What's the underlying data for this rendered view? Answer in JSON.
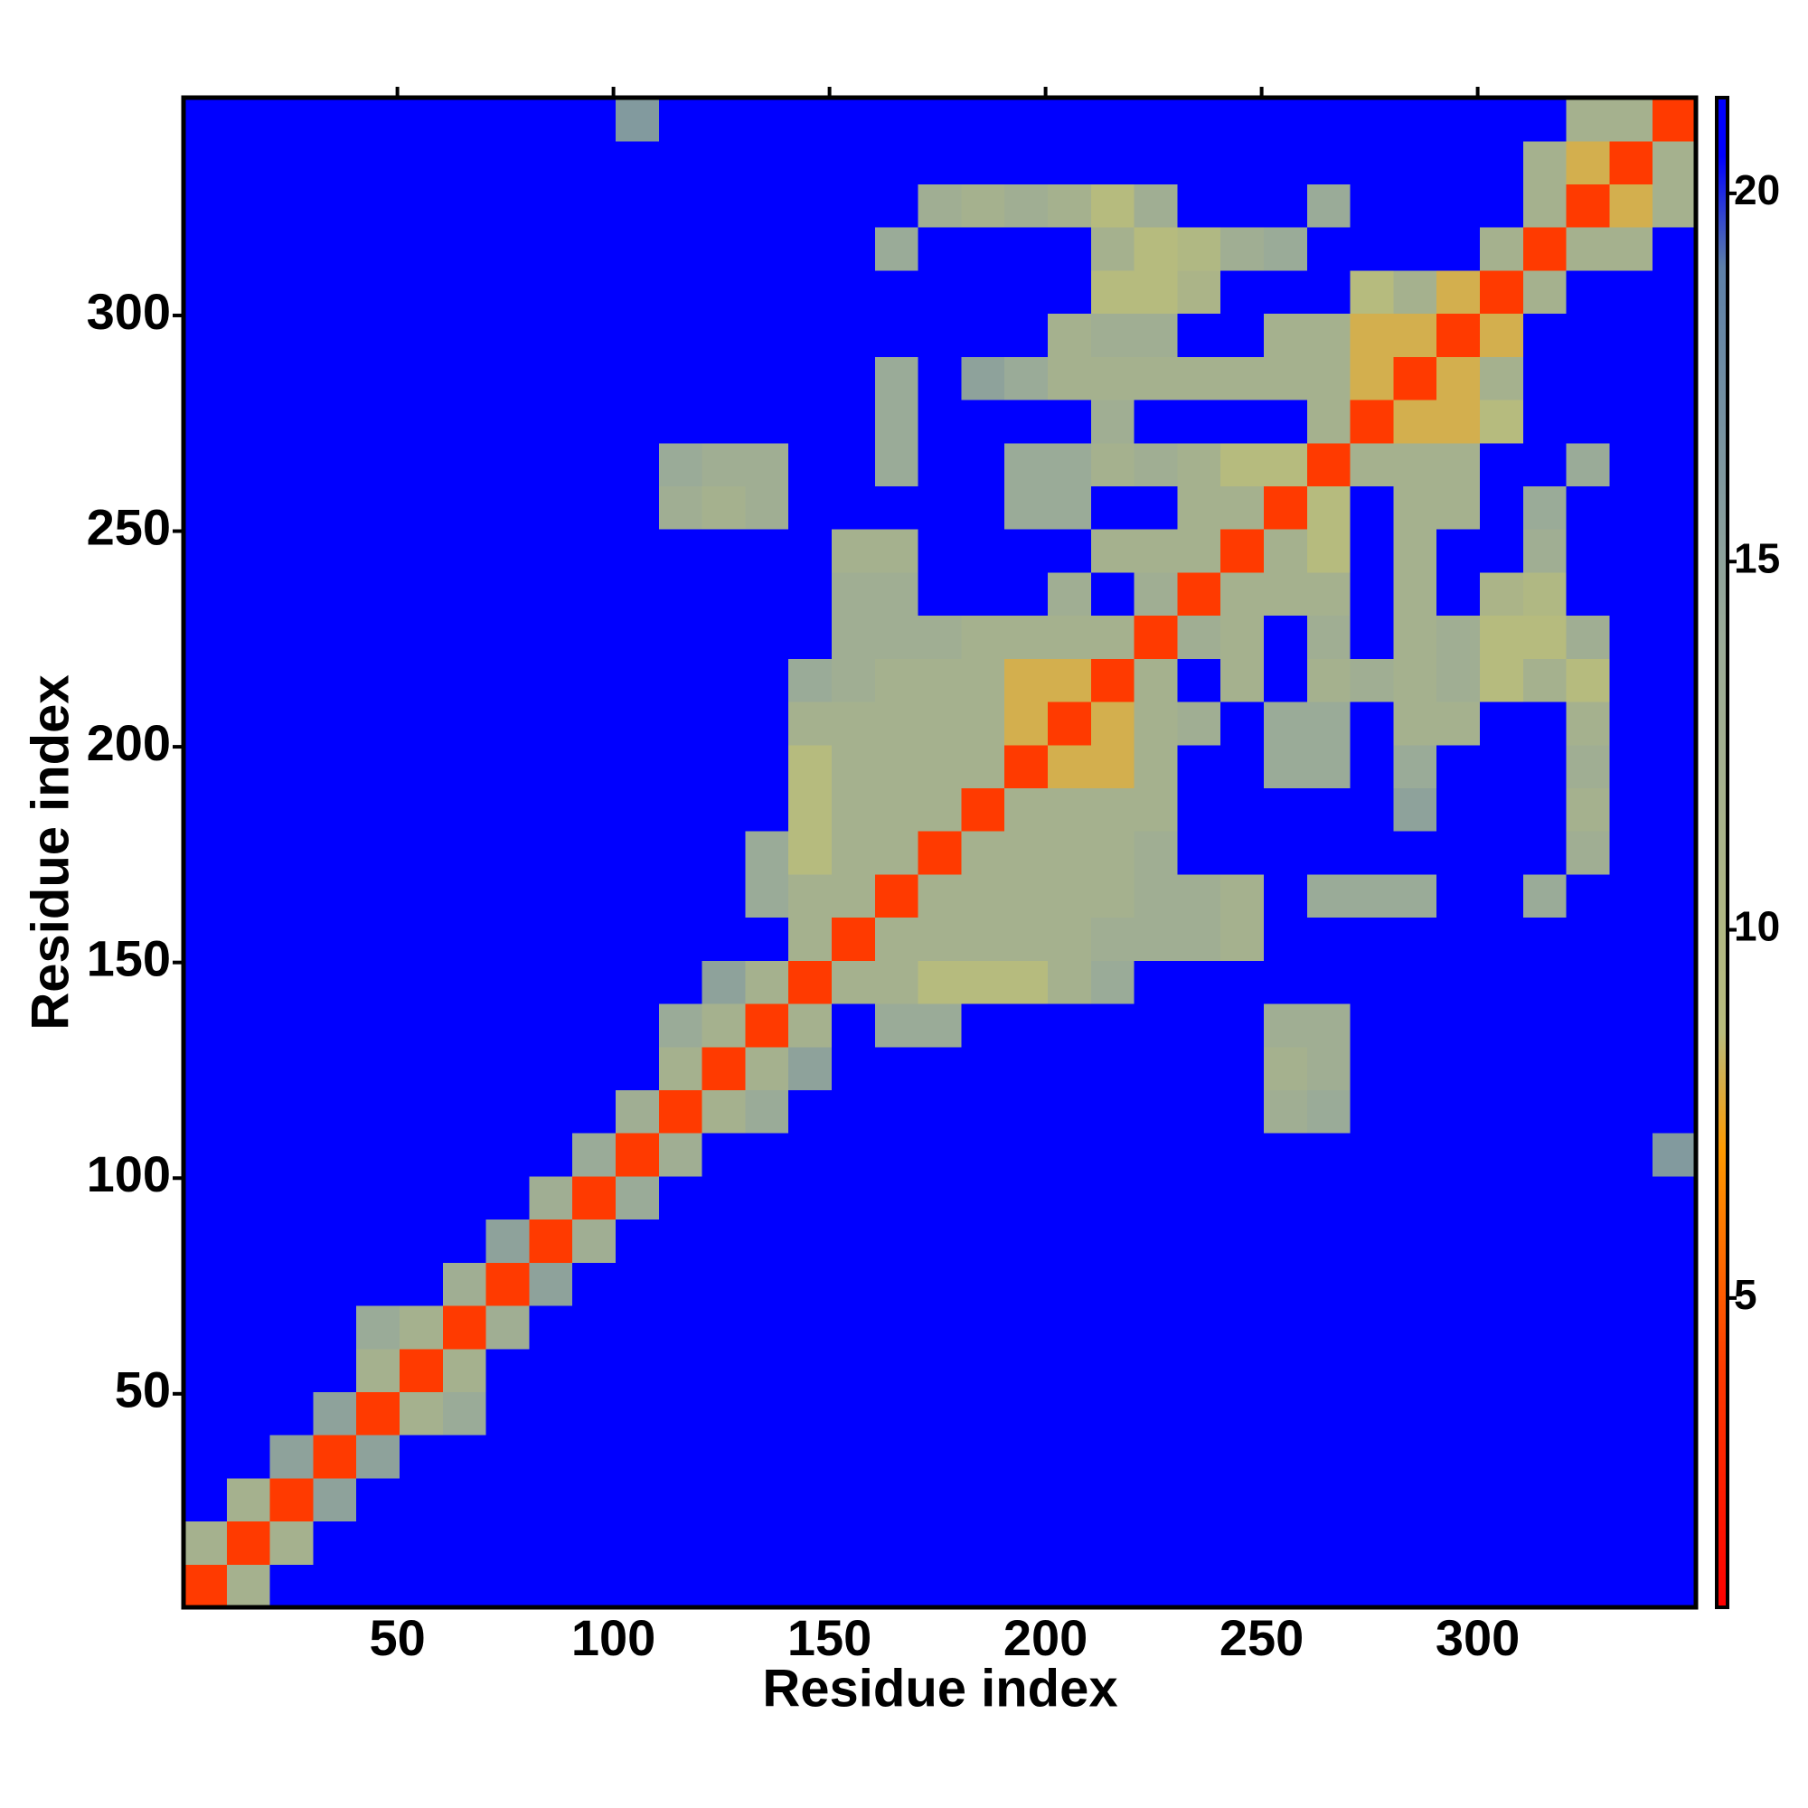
{
  "chart_data": {
    "type": "heatmap",
    "xlabel": "Residue index",
    "ylabel": "Residue index",
    "xlim": [
      0.5,
      350.5
    ],
    "ylim": [
      0.5,
      350.5
    ],
    "xticks": [
      50,
      100,
      150,
      200,
      250,
      300
    ],
    "yticks": [
      50,
      100,
      150,
      200,
      250,
      300
    ],
    "x": [
      5.5,
      15.5,
      25.5,
      35.5,
      45.5,
      55.5,
      65.5,
      75.5,
      85.5,
      95.5,
      105.5,
      115.5,
      125.5,
      135.5,
      145.5,
      155.5,
      165.5,
      175.5,
      185.5,
      195.5,
      205.5,
      215.5,
      225.5,
      235.5,
      245.5,
      255.5,
      265.5,
      275.5,
      285.5,
      295.5,
      305.5,
      315.5,
      325.5,
      335.5,
      345.5
    ],
    "y": [
      5.5,
      15.5,
      25.5,
      35.5,
      45.5,
      55.5,
      65.5,
      75.5,
      85.5,
      95.5,
      105.5,
      115.5,
      125.5,
      135.5,
      145.5,
      155.5,
      165.5,
      175.5,
      185.5,
      195.5,
      205.5,
      215.5,
      225.5,
      235.5,
      245.5,
      255.5,
      265.5,
      275.5,
      285.5,
      295.5,
      305.5,
      315.5,
      325.5,
      335.5,
      345.5
    ],
    "z": [
      [
        4,
        12,
        21,
        21,
        21,
        21,
        21,
        21,
        21,
        21,
        21,
        21,
        21,
        21,
        21,
        21,
        21,
        21,
        21,
        21,
        21,
        21,
        21,
        21,
        21,
        21,
        21,
        21,
        21,
        21,
        21,
        21,
        21,
        21,
        21
      ],
      [
        12,
        4,
        12,
        21,
        21,
        21,
        21,
        21,
        21,
        21,
        21,
        21,
        21,
        21,
        21,
        21,
        21,
        21,
        21,
        21,
        21,
        21,
        21,
        21,
        21,
        21,
        21,
        21,
        21,
        21,
        21,
        21,
        21,
        21,
        21
      ],
      [
        21,
        12,
        4,
        15,
        21,
        21,
        21,
        21,
        21,
        21,
        21,
        21,
        21,
        21,
        21,
        21,
        21,
        21,
        21,
        21,
        21,
        21,
        21,
        21,
        21,
        21,
        21,
        21,
        21,
        21,
        21,
        21,
        21,
        21,
        21
      ],
      [
        21,
        21,
        15,
        4,
        15,
        21,
        21,
        21,
        21,
        21,
        21,
        21,
        21,
        21,
        21,
        21,
        21,
        21,
        21,
        21,
        21,
        21,
        21,
        21,
        21,
        21,
        21,
        21,
        21,
        21,
        21,
        21,
        21,
        21,
        21
      ],
      [
        21,
        21,
        21,
        15,
        4,
        12,
        14,
        21,
        21,
        21,
        21,
        21,
        21,
        21,
        21,
        21,
        21,
        21,
        21,
        21,
        21,
        21,
        21,
        21,
        21,
        21,
        21,
        21,
        21,
        21,
        21,
        21,
        21,
        21,
        21
      ],
      [
        21,
        21,
        21,
        21,
        12,
        4,
        12,
        21,
        21,
        21,
        21,
        21,
        21,
        21,
        21,
        21,
        21,
        21,
        21,
        21,
        21,
        21,
        21,
        21,
        21,
        21,
        21,
        21,
        21,
        21,
        21,
        21,
        21,
        21,
        21
      ],
      [
        21,
        21,
        21,
        21,
        14,
        12,
        4,
        13,
        21,
        21,
        21,
        21,
        21,
        21,
        21,
        21,
        21,
        21,
        21,
        21,
        21,
        21,
        21,
        21,
        21,
        21,
        21,
        21,
        21,
        21,
        21,
        21,
        21,
        21,
        21
      ],
      [
        21,
        21,
        21,
        21,
        21,
        21,
        13,
        4,
        15,
        21,
        21,
        21,
        21,
        21,
        21,
        21,
        21,
        21,
        21,
        21,
        21,
        21,
        21,
        21,
        21,
        21,
        21,
        21,
        21,
        21,
        21,
        21,
        21,
        21,
        21
      ],
      [
        21,
        21,
        21,
        21,
        21,
        21,
        21,
        15,
        4,
        13,
        21,
        21,
        21,
        21,
        21,
        21,
        21,
        21,
        21,
        21,
        21,
        21,
        21,
        21,
        21,
        21,
        21,
        21,
        21,
        21,
        21,
        21,
        21,
        21,
        21
      ],
      [
        21,
        21,
        21,
        21,
        21,
        21,
        21,
        21,
        13,
        4,
        14,
        21,
        21,
        21,
        21,
        21,
        21,
        21,
        21,
        21,
        21,
        21,
        21,
        21,
        21,
        21,
        21,
        21,
        21,
        21,
        21,
        21,
        21,
        21,
        21
      ],
      [
        21,
        21,
        21,
        21,
        21,
        21,
        21,
        21,
        21,
        14,
        4,
        13,
        21,
        21,
        21,
        21,
        21,
        21,
        21,
        21,
        21,
        21,
        21,
        21,
        21,
        21,
        21,
        21,
        21,
        21,
        21,
        21,
        21,
        21,
        16
      ],
      [
        21,
        21,
        21,
        21,
        21,
        21,
        21,
        21,
        21,
        21,
        13,
        4,
        12,
        14,
        21,
        21,
        21,
        21,
        21,
        21,
        21,
        21,
        21,
        21,
        21,
        13,
        14,
        21,
        21,
        21,
        21,
        21,
        21,
        21,
        21
      ],
      [
        21,
        21,
        21,
        21,
        21,
        21,
        21,
        21,
        21,
        21,
        21,
        12,
        4,
        12,
        15,
        21,
        21,
        21,
        21,
        21,
        21,
        21,
        21,
        21,
        21,
        12,
        13,
        21,
        21,
        21,
        21,
        21,
        21,
        21,
        21
      ],
      [
        21,
        21,
        21,
        21,
        21,
        21,
        21,
        21,
        21,
        21,
        21,
        14,
        12,
        4,
        12,
        21,
        14,
        14,
        21,
        21,
        21,
        21,
        21,
        21,
        21,
        13,
        13,
        21,
        21,
        21,
        21,
        21,
        21,
        21,
        21
      ],
      [
        21,
        21,
        21,
        21,
        21,
        21,
        21,
        21,
        21,
        21,
        21,
        21,
        15,
        12,
        4,
        12,
        12,
        9,
        9,
        9,
        12,
        14,
        21,
        21,
        21,
        21,
        21,
        21,
        21,
        21,
        21,
        21,
        21,
        21,
        21
      ],
      [
        21,
        21,
        21,
        21,
        21,
        21,
        21,
        21,
        21,
        21,
        21,
        21,
        21,
        21,
        12,
        4,
        12,
        12,
        12,
        12,
        12,
        13,
        13,
        13,
        12,
        21,
        21,
        21,
        21,
        21,
        21,
        21,
        21,
        21,
        21
      ],
      [
        21,
        21,
        21,
        21,
        21,
        21,
        21,
        21,
        21,
        21,
        21,
        21,
        21,
        14,
        12,
        12,
        4,
        12,
        12,
        12,
        12,
        12,
        13,
        13,
        12,
        21,
        14,
        14,
        14,
        21,
        21,
        14,
        21,
        21,
        21
      ],
      [
        21,
        21,
        21,
        21,
        21,
        21,
        21,
        21,
        21,
        21,
        21,
        21,
        21,
        14,
        9,
        12,
        12,
        4,
        12,
        12,
        12,
        12,
        13,
        21,
        21,
        21,
        21,
        21,
        21,
        21,
        21,
        21,
        13,
        21,
        21
      ],
      [
        21,
        21,
        21,
        21,
        21,
        21,
        21,
        21,
        21,
        21,
        21,
        21,
        21,
        21,
        9,
        12,
        12,
        12,
        4,
        12,
        12,
        12,
        12,
        21,
        21,
        21,
        21,
        21,
        15,
        21,
        21,
        21,
        12,
        21,
        21
      ],
      [
        21,
        21,
        21,
        21,
        21,
        21,
        21,
        21,
        21,
        21,
        21,
        21,
        21,
        21,
        9,
        12,
        12,
        12,
        12,
        4,
        8,
        8,
        12,
        21,
        21,
        14,
        14,
        21,
        14,
        21,
        21,
        21,
        13,
        21,
        21
      ],
      [
        21,
        21,
        21,
        21,
        21,
        21,
        21,
        21,
        21,
        21,
        21,
        21,
        21,
        21,
        12,
        12,
        12,
        12,
        12,
        8,
        4,
        8,
        12,
        13,
        21,
        14,
        14,
        21,
        12,
        12,
        21,
        21,
        12,
        21,
        21
      ],
      [
        21,
        21,
        21,
        21,
        21,
        21,
        21,
        21,
        21,
        21,
        21,
        21,
        21,
        21,
        14,
        13,
        12,
        12,
        12,
        8,
        8,
        4,
        12,
        21,
        12,
        21,
        12,
        13,
        12,
        13,
        9,
        12,
        9,
        21,
        21
      ],
      [
        21,
        21,
        21,
        21,
        21,
        21,
        21,
        21,
        21,
        21,
        21,
        21,
        21,
        21,
        21,
        13,
        13,
        13,
        12,
        12,
        12,
        12,
        4,
        13,
        12,
        21,
        13,
        21,
        12,
        13,
        9,
        9,
        13,
        21,
        21
      ],
      [
        21,
        21,
        21,
        21,
        21,
        21,
        21,
        21,
        21,
        21,
        21,
        21,
        21,
        21,
        21,
        13,
        13,
        21,
        21,
        21,
        13,
        21,
        13,
        4,
        12,
        12,
        12,
        21,
        12,
        21,
        11,
        10,
        21,
        21,
        21
      ],
      [
        21,
        21,
        21,
        21,
        21,
        21,
        21,
        21,
        21,
        21,
        21,
        21,
        21,
        21,
        21,
        12,
        12,
        21,
        21,
        21,
        21,
        12,
        12,
        12,
        4,
        12,
        9,
        21,
        12,
        21,
        21,
        13,
        21,
        21,
        21
      ],
      [
        21,
        21,
        21,
        21,
        21,
        21,
        21,
        21,
        21,
        21,
        21,
        13,
        12,
        13,
        21,
        21,
        21,
        21,
        21,
        14,
        14,
        21,
        21,
        12,
        12,
        4,
        9,
        21,
        12,
        12,
        21,
        14,
        21,
        21,
        21
      ],
      [
        21,
        21,
        21,
        21,
        21,
        21,
        21,
        21,
        21,
        21,
        21,
        14,
        13,
        13,
        21,
        21,
        14,
        21,
        21,
        14,
        14,
        12,
        13,
        12,
        9,
        9,
        4,
        12,
        12,
        12,
        21,
        21,
        14,
        21,
        21
      ],
      [
        21,
        21,
        21,
        21,
        21,
        21,
        21,
        21,
        21,
        21,
        21,
        21,
        21,
        21,
        21,
        21,
        14,
        21,
        21,
        21,
        21,
        13,
        21,
        21,
        21,
        21,
        12,
        4,
        8,
        8,
        9,
        21,
        21,
        21,
        21
      ],
      [
        21,
        21,
        21,
        21,
        21,
        21,
        21,
        21,
        21,
        21,
        21,
        21,
        21,
        21,
        21,
        21,
        14,
        21,
        15,
        14,
        12,
        12,
        12,
        12,
        12,
        12,
        12,
        8,
        4,
        8,
        12,
        21,
        21,
        21,
        21
      ],
      [
        21,
        21,
        21,
        21,
        21,
        21,
        21,
        21,
        21,
        21,
        21,
        21,
        21,
        21,
        21,
        21,
        21,
        21,
        21,
        21,
        12,
        13,
        13,
        21,
        21,
        12,
        12,
        8,
        8,
        4,
        8,
        21,
        21,
        21,
        21
      ],
      [
        21,
        21,
        21,
        21,
        21,
        21,
        21,
        21,
        21,
        21,
        21,
        21,
        21,
        21,
        21,
        21,
        21,
        21,
        21,
        21,
        21,
        9,
        9,
        11,
        21,
        21,
        21,
        9,
        12,
        8,
        4,
        12,
        21,
        21,
        21
      ],
      [
        21,
        21,
        21,
        21,
        21,
        21,
        21,
        21,
        21,
        21,
        21,
        21,
        21,
        21,
        21,
        21,
        14,
        21,
        21,
        21,
        21,
        12,
        9,
        10,
        13,
        14,
        21,
        21,
        21,
        21,
        12,
        4,
        12,
        12,
        21
      ],
      [
        21,
        21,
        21,
        21,
        21,
        21,
        21,
        21,
        21,
        21,
        21,
        21,
        21,
        21,
        21,
        21,
        21,
        13,
        12,
        13,
        12,
        9,
        13,
        21,
        21,
        21,
        14,
        21,
        21,
        21,
        21,
        12,
        4,
        8,
        12
      ],
      [
        21,
        21,
        21,
        21,
        21,
        21,
        21,
        21,
        21,
        21,
        21,
        21,
        21,
        21,
        21,
        21,
        21,
        21,
        21,
        21,
        21,
        21,
        21,
        21,
        21,
        21,
        21,
        21,
        21,
        21,
        21,
        12,
        8,
        4,
        12
      ],
      [
        21,
        21,
        21,
        21,
        21,
        21,
        21,
        21,
        21,
        21,
        16,
        21,
        21,
        21,
        21,
        21,
        21,
        21,
        21,
        21,
        21,
        21,
        21,
        21,
        21,
        21,
        21,
        21,
        21,
        21,
        21,
        21,
        12,
        12,
        4
      ]
    ],
    "colorbar": {
      "lim": [
        0.8,
        21.3
      ],
      "ticks": [
        5,
        10,
        15,
        20
      ]
    },
    "colorscale": [
      {
        "value": 0.8,
        "color": "#ff0000"
      },
      {
        "value": 4,
        "color": "#ff3a00"
      },
      {
        "value": 7,
        "color": "#ff9a00"
      },
      {
        "value": 8.6,
        "color": "#b8bc7c"
      },
      {
        "value": 14,
        "color": "#9aab98"
      },
      {
        "value": 19,
        "color": "#5d80a8"
      },
      {
        "value": 20.5,
        "color": "#0000ff"
      }
    ]
  }
}
